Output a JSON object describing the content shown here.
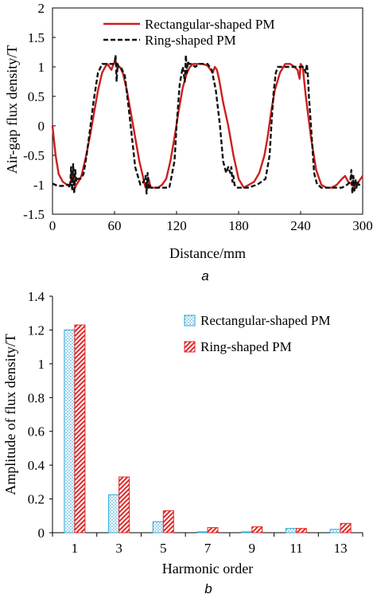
{
  "chart_data": [
    {
      "id": "a",
      "type": "line",
      "panel_label": "a",
      "title": "",
      "xlabel": "Distance/mm",
      "ylabel": "Air-gap flux density/T",
      "xlim": [
        0,
        300
      ],
      "ylim": [
        -1.5,
        2
      ],
      "xticks": [
        0,
        60,
        120,
        180,
        240,
        300
      ],
      "yticks": [
        -1.5,
        -1,
        -0.5,
        0,
        0.5,
        1,
        1.5,
        2
      ],
      "grid": false,
      "legend": "top-left",
      "series": [
        {
          "name": "Rectangular-shaped PM",
          "color": "#cc1f1f",
          "style": "solid",
          "x": [
            0,
            3,
            6,
            10,
            14,
            17,
            19,
            20,
            21,
            22,
            23,
            25,
            28,
            32,
            36,
            40,
            44,
            48,
            51,
            53,
            55,
            57,
            59,
            61,
            63,
            65,
            68,
            72,
            76,
            80,
            84,
            88,
            90,
            92,
            93,
            95,
            98,
            102,
            106,
            110,
            114,
            118,
            122,
            126,
            130,
            133,
            136,
            140,
            145,
            150,
            155,
            157,
            159,
            161,
            165,
            170,
            175,
            180,
            185,
            190,
            195,
            200,
            205,
            208,
            212,
            215,
            220,
            225,
            230,
            234,
            237,
            239,
            240,
            242,
            245,
            250,
            255,
            260,
            265,
            270,
            275,
            280,
            283,
            286,
            290,
            293,
            296,
            300
          ],
          "y": [
            0.0,
            -0.5,
            -0.82,
            -0.95,
            -1.0,
            -1.0,
            -0.85,
            -0.95,
            -0.9,
            -1.05,
            -1.0,
            -0.95,
            -0.85,
            -0.55,
            -0.2,
            0.2,
            0.6,
            0.9,
            1.0,
            1.05,
            1.0,
            0.95,
            1.05,
            1.1,
            1.0,
            1.0,
            0.9,
            0.6,
            0.2,
            -0.2,
            -0.6,
            -0.9,
            -1.05,
            -1.0,
            -0.9,
            -1.05,
            -1.05,
            -1.05,
            -1.0,
            -0.9,
            -0.6,
            -0.2,
            0.25,
            0.65,
            0.9,
            1.0,
            1.05,
            1.05,
            1.05,
            1.02,
            0.9,
            1.0,
            0.95,
            0.8,
            0.4,
            0.0,
            -0.5,
            -0.9,
            -1.05,
            -1.0,
            -0.95,
            -0.8,
            -0.5,
            -0.2,
            0.3,
            0.6,
            0.9,
            1.05,
            1.05,
            1.0,
            0.95,
            0.8,
            1.05,
            1.0,
            0.5,
            -0.2,
            -0.75,
            -1.0,
            -1.05,
            -1.05,
            -1.0,
            -0.9,
            -0.85,
            -0.95,
            -1.0,
            -1.05,
            -0.95,
            -0.85
          ]
        },
        {
          "name": "Ring-shaped PM",
          "color": "#111111",
          "style": "dashed",
          "x": [
            0,
            5,
            10,
            15,
            17,
            18,
            19,
            20,
            21,
            22,
            23,
            24,
            27,
            30,
            33,
            36,
            40,
            44,
            48,
            50,
            52,
            55,
            58,
            60,
            61,
            62,
            63,
            64,
            66,
            70,
            75,
            80,
            85,
            88,
            90,
            91,
            92,
            93,
            94,
            95,
            98,
            103,
            108,
            113,
            118,
            120,
            123,
            126,
            128,
            129,
            130,
            131,
            132,
            134,
            138,
            142,
            146,
            150,
            154,
            158,
            162,
            165,
            168,
            170,
            172,
            173,
            174,
            175,
            176,
            178,
            182,
            186,
            190,
            194,
            198,
            202,
            206,
            210,
            212,
            214,
            216,
            218,
            220,
            225,
            230,
            235,
            240,
            243,
            245,
            246,
            247,
            248,
            250,
            253,
            256,
            258,
            260,
            265,
            270,
            275,
            280,
            285,
            288,
            289,
            290,
            291,
            292,
            293,
            294,
            295,
            296,
            300
          ],
          "y": [
            -0.98,
            -1.02,
            -1.02,
            -1.0,
            -1.05,
            -0.7,
            -1.1,
            -0.65,
            -1.15,
            -0.75,
            -0.95,
            -0.9,
            -0.9,
            -0.82,
            -0.5,
            -0.1,
            0.45,
            0.9,
            1.05,
            1.05,
            1.05,
            1.05,
            1.05,
            1.05,
            1.2,
            0.75,
            1.05,
            1.0,
            1.0,
            0.85,
            0.1,
            -0.7,
            -1.0,
            -0.95,
            -0.85,
            -1.15,
            -0.8,
            -1.05,
            -1.0,
            -1.05,
            -1.05,
            -1.05,
            -1.05,
            -1.05,
            -0.6,
            0.0,
            0.7,
            1.0,
            0.75,
            1.2,
            0.9,
            1.1,
            1.05,
            1.05,
            1.0,
            1.05,
            1.05,
            1.05,
            0.95,
            0.6,
            0.0,
            -0.6,
            -0.8,
            -0.7,
            -0.8,
            -0.7,
            -0.95,
            -0.85,
            -1.0,
            -1.05,
            -1.05,
            -1.05,
            -1.05,
            -1.02,
            -1.0,
            -0.95,
            -0.9,
            -0.5,
            0.1,
            0.6,
            0.9,
            1.0,
            1.0,
            1.0,
            1.0,
            1.0,
            1.0,
            1.0,
            0.9,
            1.05,
            0.85,
            0.5,
            0.0,
            -0.8,
            -1.0,
            -1.02,
            -1.05,
            -1.05,
            -1.05,
            -1.05,
            -1.05,
            -1.0,
            -0.95,
            -0.75,
            -1.15,
            -0.85,
            -1.1,
            -0.9,
            -1.05,
            -0.95,
            -1.0,
            -1.0
          ]
        }
      ]
    },
    {
      "id": "b",
      "type": "bar",
      "panel_label": "b",
      "title": "",
      "xlabel": "Harmonic order",
      "ylabel": "Amplitude of flux density/T",
      "ylim": [
        0,
        1.4
      ],
      "yticks": [
        0,
        0.2,
        0.4,
        0.6,
        0.8,
        1,
        1.2,
        1.4
      ],
      "grid": false,
      "legend": "top-right",
      "categories": [
        "1",
        "3",
        "5",
        "7",
        "9",
        "11",
        "13"
      ],
      "series": [
        {
          "name": "Rectangular-shaped PM",
          "color": "#29a3d6",
          "pattern": "dots",
          "values": [
            1.2,
            0.225,
            0.065,
            0.005,
            0.005,
            0.025,
            0.02
          ]
        },
        {
          "name": "Ring-shaped PM",
          "color": "#e02828",
          "pattern": "diagonal-hatch",
          "values": [
            1.23,
            0.33,
            0.13,
            0.03,
            0.035,
            0.025,
            0.055
          ]
        }
      ]
    }
  ]
}
